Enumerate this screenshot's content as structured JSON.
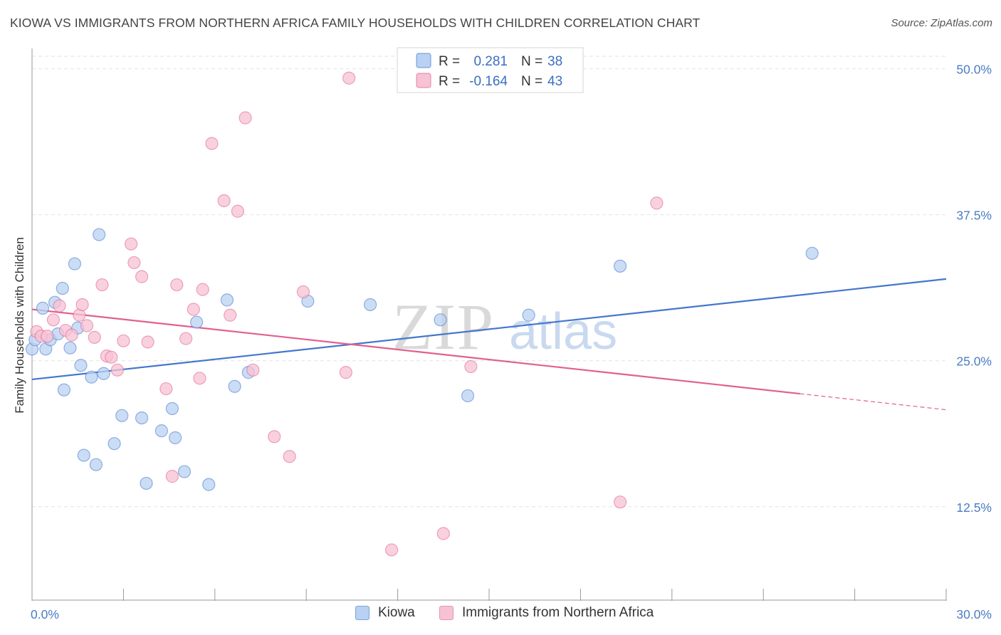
{
  "title": "KIOWA VS IMMIGRANTS FROM NORTHERN AFRICA FAMILY HOUSEHOLDS WITH CHILDREN CORRELATION CHART",
  "source": "Source: ZipAtlas.com",
  "chart_data": {
    "type": "scatter",
    "ylabel": "Family Households with Children",
    "xlim": [
      0,
      30
    ],
    "ylim": [
      4.5,
      51.5
    ],
    "x_tick_labels": [
      "0.0%",
      "30.0%"
    ],
    "y_ticks": [
      12.5,
      25.0,
      37.5,
      50.0
    ],
    "y_tick_labels": [
      "12.5%",
      "25.0%",
      "37.5%",
      "50.0%"
    ],
    "grid": true,
    "legend_top": {
      "rows": [
        {
          "r_label": "R =",
          "r_value": "0.281",
          "n_label": "N =",
          "n_value": "38"
        },
        {
          "r_label": "R =",
          "r_value": "-0.164",
          "n_label": "N =",
          "n_value": "43"
        }
      ]
    },
    "watermark": {
      "part1": "ZIP",
      "part2": "atlas"
    },
    "series": [
      {
        "name": "Kiowa",
        "color": "#4477cc",
        "fill": "#b9d1f2",
        "trend": {
          "x0": 0,
          "y0": 23.4,
          "x1": 30,
          "y1": 32.0,
          "dash_from": null
        },
        "points": [
          [
            0.0,
            26.0
          ],
          [
            0.1,
            26.8
          ],
          [
            0.35,
            29.5
          ],
          [
            0.45,
            26.0
          ],
          [
            0.6,
            26.8
          ],
          [
            0.75,
            30.0
          ],
          [
            0.85,
            27.3
          ],
          [
            1.0,
            31.2
          ],
          [
            1.05,
            22.5
          ],
          [
            1.25,
            26.1
          ],
          [
            1.4,
            33.3
          ],
          [
            1.5,
            27.8
          ],
          [
            1.6,
            24.6
          ],
          [
            1.7,
            16.9
          ],
          [
            1.95,
            23.6
          ],
          [
            2.1,
            16.1
          ],
          [
            2.2,
            35.8
          ],
          [
            2.35,
            23.9
          ],
          [
            2.7,
            17.9
          ],
          [
            2.95,
            20.3
          ],
          [
            3.6,
            20.1
          ],
          [
            3.75,
            14.5
          ],
          [
            4.25,
            19.0
          ],
          [
            4.6,
            20.9
          ],
          [
            4.7,
            18.4
          ],
          [
            5.0,
            15.5
          ],
          [
            5.4,
            28.3
          ],
          [
            5.8,
            14.4
          ],
          [
            6.4,
            30.2
          ],
          [
            6.65,
            22.8
          ],
          [
            7.1,
            24.0
          ],
          [
            9.05,
            30.1
          ],
          [
            11.1,
            29.8
          ],
          [
            13.4,
            28.5
          ],
          [
            14.3,
            22.0
          ],
          [
            16.3,
            28.9
          ],
          [
            19.3,
            33.1
          ],
          [
            25.6,
            34.2
          ]
        ]
      },
      {
        "name": "Immigrants from Northern Africa",
        "color": "#e06090",
        "fill": "#f7c2d3",
        "trend": {
          "x0": 0,
          "y0": 29.4,
          "x1": 30,
          "y1": 20.8,
          "dash_from": 25.2
        },
        "points": [
          [
            0.15,
            27.5
          ],
          [
            0.3,
            27.1
          ],
          [
            0.5,
            27.1
          ],
          [
            0.7,
            28.5
          ],
          [
            0.9,
            29.7
          ],
          [
            1.1,
            27.6
          ],
          [
            1.3,
            27.2
          ],
          [
            1.55,
            28.9
          ],
          [
            1.65,
            29.8
          ],
          [
            1.8,
            28.0
          ],
          [
            2.05,
            27.0
          ],
          [
            2.3,
            31.5
          ],
          [
            2.45,
            25.4
          ],
          [
            2.6,
            25.3
          ],
          [
            2.8,
            24.2
          ],
          [
            3.0,
            26.7
          ],
          [
            3.25,
            35.0
          ],
          [
            3.35,
            33.4
          ],
          [
            3.6,
            32.2
          ],
          [
            3.8,
            26.6
          ],
          [
            4.4,
            22.6
          ],
          [
            4.6,
            15.1
          ],
          [
            4.75,
            31.5
          ],
          [
            5.05,
            26.9
          ],
          [
            5.3,
            29.4
          ],
          [
            5.5,
            23.5
          ],
          [
            5.6,
            31.1
          ],
          [
            5.9,
            43.6
          ],
          [
            6.3,
            38.7
          ],
          [
            6.5,
            28.9
          ],
          [
            6.75,
            37.8
          ],
          [
            7.0,
            45.8
          ],
          [
            7.25,
            24.2
          ],
          [
            7.95,
            18.5
          ],
          [
            8.45,
            16.8
          ],
          [
            8.9,
            30.9
          ],
          [
            10.3,
            24.0
          ],
          [
            10.4,
            49.2
          ],
          [
            11.8,
            8.8
          ],
          [
            13.5,
            10.2
          ],
          [
            14.4,
            24.5
          ],
          [
            19.3,
            12.9
          ],
          [
            20.5,
            38.5
          ]
        ]
      }
    ]
  }
}
